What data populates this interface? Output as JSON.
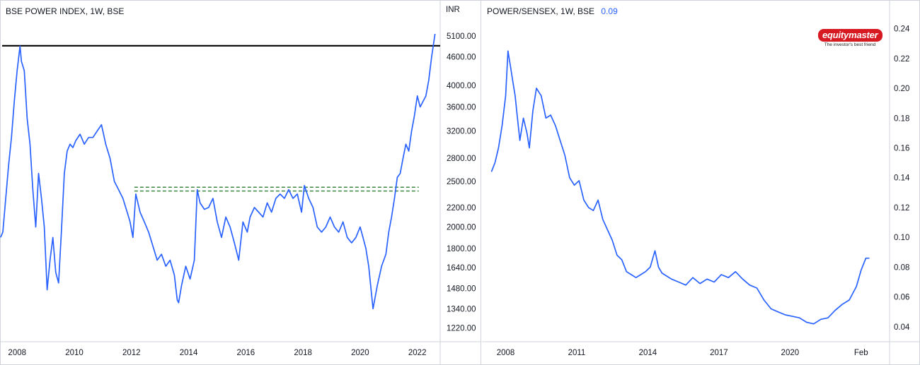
{
  "chart_data": [
    {
      "type": "line",
      "title": "BSE POWER INDEX, 1W, BSE",
      "unit_label": "INR",
      "color": "#2962ff",
      "y_scale": "log",
      "ylim": [
        1140,
        5480
      ],
      "xlim": [
        2007.4,
        2022.8
      ],
      "y_ticks": [
        "5100.00",
        "4600.00",
        "4000.00",
        "3600.00",
        "3200.00",
        "2800.00",
        "2500.00",
        "2200.00",
        "2000.00",
        "1800.00",
        "1640.00",
        "1480.00",
        "1340.00",
        "1220.00"
      ],
      "x_ticks": [
        "2008",
        "2010",
        "2012",
        "2014",
        "2016",
        "2018",
        "2020",
        "2022"
      ],
      "annotations": {
        "resistance_line_y": 4858,
        "resistance_color": "#000000",
        "support_band": {
          "x_start": 2012.1,
          "x_end": 2022.05,
          "y_top": 2430,
          "y_bottom": 2385,
          "color": "#2e7d32"
        }
      },
      "x": [
        2007.42,
        2007.5,
        2007.6,
        2007.7,
        2007.8,
        2007.9,
        2008.0,
        2008.1,
        2008.15,
        2008.25,
        2008.35,
        2008.45,
        2008.55,
        2008.65,
        2008.75,
        2008.85,
        2008.95,
        2009.05,
        2009.15,
        2009.25,
        2009.35,
        2009.45,
        2009.55,
        2009.65,
        2009.75,
        2009.85,
        2009.95,
        2010.05,
        2010.2,
        2010.35,
        2010.5,
        2010.65,
        2010.8,
        2010.95,
        2011.1,
        2011.25,
        2011.4,
        2011.55,
        2011.7,
        2011.85,
        2011.95,
        2012.05,
        2012.15,
        2012.3,
        2012.45,
        2012.6,
        2012.75,
        2012.9,
        2013.05,
        2013.2,
        2013.35,
        2013.5,
        2013.6,
        2013.65,
        2013.75,
        2013.9,
        2014.05,
        2014.2,
        2014.3,
        2014.4,
        2014.55,
        2014.7,
        2014.85,
        2015.0,
        2015.15,
        2015.3,
        2015.45,
        2015.6,
        2015.75,
        2015.9,
        2016.05,
        2016.15,
        2016.3,
        2016.45,
        2016.6,
        2016.75,
        2016.9,
        2017.05,
        2017.2,
        2017.35,
        2017.5,
        2017.65,
        2017.8,
        2017.95,
        2018.05,
        2018.2,
        2018.35,
        2018.5,
        2018.65,
        2018.8,
        2018.95,
        2019.1,
        2019.25,
        2019.4,
        2019.55,
        2019.7,
        2019.85,
        2020.0,
        2020.1,
        2020.2,
        2020.3,
        2020.45,
        2020.6,
        2020.75,
        2020.9,
        2021.0,
        2021.1,
        2021.2,
        2021.3,
        2021.4,
        2021.5,
        2021.6,
        2021.7,
        2021.8,
        2021.9,
        2022.0,
        2022.1,
        2022.2,
        2022.3,
        2022.4,
        2022.5,
        2022.62
      ],
      "y": [
        1900,
        1950,
        2300,
        2700,
        3100,
        3700,
        4300,
        4850,
        4500,
        4300,
        3400,
        3000,
        2400,
        2000,
        2600,
        2300,
        2000,
        1470,
        1700,
        1900,
        1600,
        1520,
        1960,
        2600,
        2900,
        3000,
        2950,
        3050,
        3150,
        3000,
        3100,
        3100,
        3200,
        3300,
        3000,
        2800,
        2500,
        2400,
        2300,
        2150,
        2050,
        1900,
        2350,
        2150,
        2050,
        1950,
        1820,
        1700,
        1750,
        1650,
        1700,
        1580,
        1400,
        1380,
        1500,
        1650,
        1550,
        1700,
        2400,
        2250,
        2180,
        2200,
        2300,
        2050,
        1900,
        2100,
        2000,
        1850,
        1700,
        2050,
        1950,
        2100,
        2200,
        2150,
        2100,
        2250,
        2150,
        2300,
        2350,
        2300,
        2400,
        2300,
        2350,
        2150,
        2450,
        2300,
        2200,
        2000,
        1950,
        2000,
        2100,
        2000,
        1950,
        2050,
        1900,
        1850,
        1900,
        2000,
        1900,
        1800,
        1650,
        1340,
        1500,
        1650,
        1750,
        1950,
        2100,
        2300,
        2550,
        2600,
        2800,
        3000,
        2900,
        3200,
        3450,
        3800,
        3600,
        3700,
        3800,
        4100,
        4600,
        5150
      ]
    },
    {
      "type": "line",
      "title": "POWER/SENSEX, 1W, BSE",
      "last_value": "0.09",
      "color": "#2962ff",
      "ylim": [
        0.03,
        0.245
      ],
      "xlim": [
        2007.0,
        2024.2
      ],
      "y_ticks": [
        "0.24",
        "0.22",
        "0.20",
        "0.18",
        "0.16",
        "0.14",
        "0.12",
        "0.10",
        "0.08",
        "0.06",
        "0.04"
      ],
      "x_ticks": [
        "2008",
        "2011",
        "2014",
        "2017",
        "2020",
        "Feb"
      ],
      "x_tick_values": [
        2008,
        2011,
        2014,
        2017,
        2020,
        2023
      ],
      "x": [
        2007.4,
        2007.55,
        2007.7,
        2007.85,
        2008.0,
        2008.1,
        2008.2,
        2008.3,
        2008.4,
        2008.5,
        2008.6,
        2008.75,
        2008.9,
        2009.0,
        2009.15,
        2009.3,
        2009.5,
        2009.7,
        2009.9,
        2010.1,
        2010.3,
        2010.5,
        2010.7,
        2010.9,
        2011.1,
        2011.3,
        2011.5,
        2011.7,
        2011.9,
        2012.1,
        2012.3,
        2012.5,
        2012.7,
        2012.9,
        2013.1,
        2013.3,
        2013.5,
        2013.7,
        2013.9,
        2014.1,
        2014.3,
        2014.45,
        2014.6,
        2014.8,
        2015.0,
        2015.3,
        2015.6,
        2015.9,
        2016.2,
        2016.5,
        2016.8,
        2017.1,
        2017.4,
        2017.7,
        2018.0,
        2018.3,
        2018.6,
        2018.9,
        2019.2,
        2019.5,
        2019.8,
        2020.1,
        2020.4,
        2020.7,
        2021.0,
        2021.3,
        2021.6,
        2021.9,
        2022.2,
        2022.5,
        2022.8,
        2023.0,
        2023.2,
        2023.35
      ],
      "y": [
        0.144,
        0.15,
        0.16,
        0.175,
        0.195,
        0.225,
        0.215,
        0.205,
        0.195,
        0.18,
        0.165,
        0.18,
        0.17,
        0.16,
        0.185,
        0.2,
        0.195,
        0.18,
        0.182,
        0.175,
        0.165,
        0.155,
        0.14,
        0.135,
        0.138,
        0.125,
        0.12,
        0.118,
        0.125,
        0.112,
        0.105,
        0.098,
        0.088,
        0.085,
        0.077,
        0.075,
        0.073,
        0.075,
        0.077,
        0.08,
        0.091,
        0.08,
        0.076,
        0.074,
        0.072,
        0.07,
        0.068,
        0.073,
        0.069,
        0.072,
        0.07,
        0.075,
        0.073,
        0.077,
        0.072,
        0.068,
        0.066,
        0.058,
        0.052,
        0.05,
        0.048,
        0.047,
        0.046,
        0.043,
        0.042,
        0.045,
        0.046,
        0.051,
        0.055,
        0.058,
        0.067,
        0.078,
        0.086,
        0.086
      ]
    }
  ],
  "branding": {
    "logo_text": "equitymaster",
    "tagline": "The investor's best friend"
  }
}
